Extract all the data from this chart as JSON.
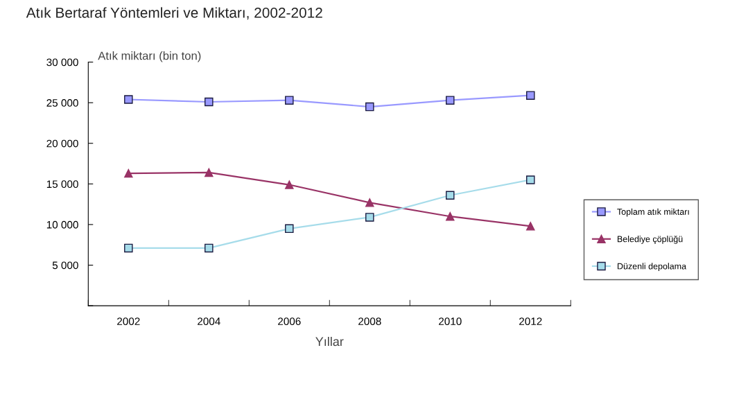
{
  "chart_data": {
    "type": "line",
    "title": "Atık Bertaraf Yöntemleri ve Miktarı, 2002-2012",
    "ylabel": "Atık miktarı (bin ton)",
    "xlabel": "Yıllar",
    "categories": [
      "2002",
      "2004",
      "2006",
      "2008",
      "2010",
      "2012"
    ],
    "series": [
      {
        "name": "Toplam atık miktarı",
        "color": "#9999ff",
        "marker": "square",
        "values": [
          25400,
          25100,
          25300,
          24500,
          25300,
          25900
        ]
      },
      {
        "name": "Belediye çöplüğü",
        "color": "#993366",
        "marker": "triangle",
        "values": [
          16300,
          16400,
          14900,
          12700,
          11000,
          9800
        ]
      },
      {
        "name": "Düzenli depolama",
        "color": "#a6dcea",
        "marker": "square",
        "values": [
          7100,
          7100,
          9500,
          10900,
          13600,
          15500
        ]
      }
    ],
    "ylim": [
      0,
      30000
    ],
    "yticks": [
      {
        "value": 0,
        "label": null
      },
      {
        "value": 5000,
        "label": "5 000"
      },
      {
        "value": 10000,
        "label": "10 000"
      },
      {
        "value": 15000,
        "label": "15 000"
      },
      {
        "value": 20000,
        "label": "20 000"
      },
      {
        "value": 25000,
        "label": "25 000"
      },
      {
        "value": 30000,
        "label": "30 000"
      }
    ],
    "grid": false,
    "legend": "right",
    "line_style": "solid"
  }
}
